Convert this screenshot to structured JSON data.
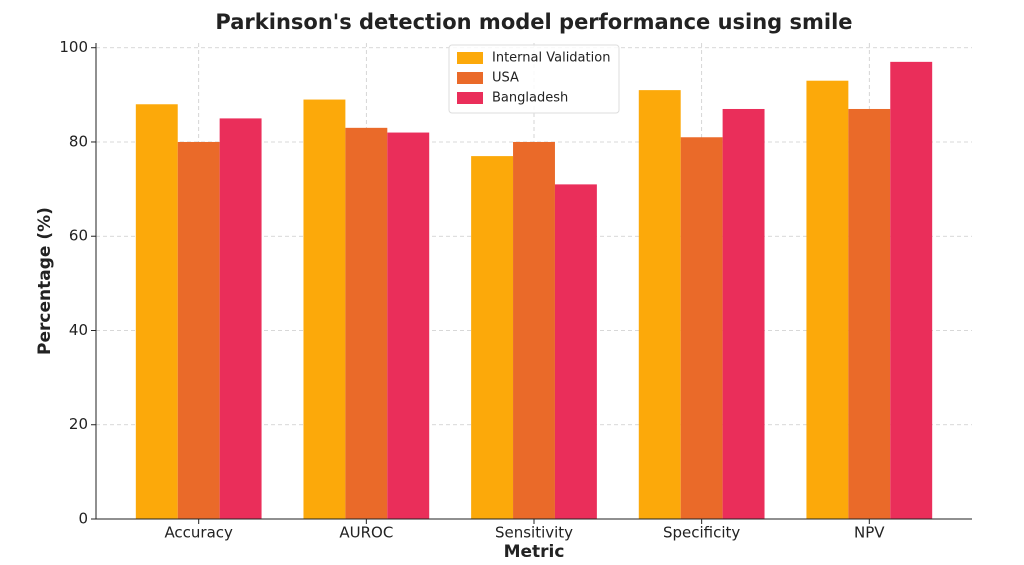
{
  "chart_data": {
    "type": "bar",
    "title": "Parkinson's detection model performance using smile",
    "x_label": "Metric",
    "y_label": "Percentage (%)",
    "categories": [
      "Accuracy",
      "AUROC",
      "Sensitivity",
      "Specificity",
      "NPV"
    ],
    "series": [
      {
        "name": "Internal Validation",
        "color": "#fca90a",
        "values": [
          88,
          89,
          77,
          91,
          93
        ]
      },
      {
        "name": "USA",
        "color": "#ea6a29",
        "values": [
          80,
          83,
          80,
          81,
          87
        ]
      },
      {
        "name": "Bangladesh",
        "color": "#ea2e5a",
        "values": [
          85,
          82,
          71,
          87,
          97
        ]
      }
    ],
    "ylim": [
      0,
      101
    ],
    "yticks": [
      0,
      20,
      40,
      60,
      80,
      100
    ],
    "grid": true,
    "legend": "upper-center"
  }
}
